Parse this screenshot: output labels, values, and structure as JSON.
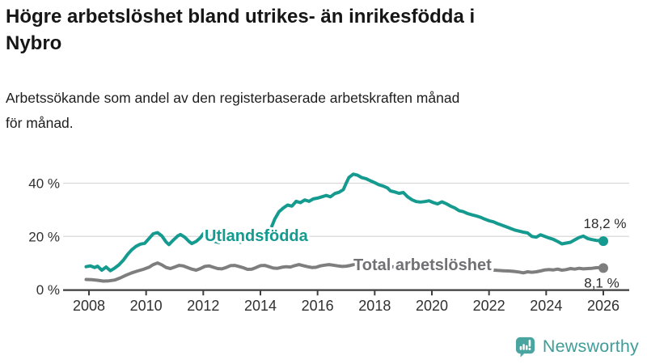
{
  "header": {
    "title": "Högre arbetslöshet bland utrikes- än inrikesfödda i Nybro",
    "title_lines": [
      "Högre arbetslöshet bland utrikes- än inrikesfödda i",
      "Nybro"
    ],
    "subtitle": "Arbetssökande som andel av den registerbaserade arbetskraften månad för månad.",
    "subtitle_lines": [
      "Arbetssökande som andel av den registerbaserade arbetskraften månad",
      "för månad."
    ]
  },
  "footer": {
    "brand": "Newsworthy",
    "logo_icon": "bar-chart-speech-bubble-icon"
  },
  "colors": {
    "series_teal": "#149a8e",
    "series_gray": "#7e7e7e",
    "gray_label": "#717175",
    "grid": "#d9d9d9",
    "axis": "#3d3d3d",
    "tick_text": "#303030",
    "value_text": "#2b2b2b",
    "logo_teal": "#4aa4a0",
    "wordmark_teal": "#3f9d99"
  },
  "chart_data": {
    "type": "line",
    "title": "Högre arbetslöshet bland utrikes- än inrikesfödda i Nybro",
    "subtitle": "Arbetssökande som andel av den registerbaserade arbetskraften månad för månad.",
    "unit": "%",
    "grid": "horizontal-only",
    "legend_position": "inline-labels-on-lines",
    "x_axis": {
      "ticks": [
        2008,
        2010,
        2012,
        2014,
        2016,
        2018,
        2020,
        2022,
        2024,
        2026
      ],
      "range": [
        2007.9,
        2026.9
      ]
    },
    "y_axis": {
      "ticks": [
        {
          "value": 0,
          "label": "0 %"
        },
        {
          "value": 20,
          "label": "20 %"
        },
        {
          "value": 40,
          "label": "40 %"
        }
      ],
      "range": [
        0,
        47
      ]
    },
    "series": [
      {
        "name": "Utlandsfödda",
        "color": "#149a8e",
        "end_value": 18.2,
        "end_label": "18,2 %",
        "points": [
          [
            2007.9,
            8.6
          ],
          [
            2008.05,
            8.9
          ],
          [
            2008.2,
            8.3
          ],
          [
            2008.3,
            8.8
          ],
          [
            2008.45,
            7.3
          ],
          [
            2008.6,
            8.5
          ],
          [
            2008.75,
            7.1
          ],
          [
            2008.9,
            8.1
          ],
          [
            2009.05,
            9.3
          ],
          [
            2009.2,
            11.0
          ],
          [
            2009.35,
            13.2
          ],
          [
            2009.5,
            15.0
          ],
          [
            2009.65,
            16.3
          ],
          [
            2009.8,
            17.1
          ],
          [
            2009.95,
            17.4
          ],
          [
            2010.1,
            19.2
          ],
          [
            2010.25,
            21.0
          ],
          [
            2010.4,
            21.4
          ],
          [
            2010.55,
            20.2
          ],
          [
            2010.7,
            17.9
          ],
          [
            2010.8,
            16.9
          ],
          [
            2010.95,
            18.6
          ],
          [
            2011.1,
            20.1
          ],
          [
            2011.2,
            20.7
          ],
          [
            2011.35,
            19.7
          ],
          [
            2011.5,
            18.1
          ],
          [
            2011.6,
            17.3
          ],
          [
            2011.75,
            18.1
          ],
          [
            2011.9,
            19.5
          ],
          [
            2012.0,
            21.0
          ],
          [
            2012.15,
            21.3
          ],
          [
            2012.3,
            19.4
          ],
          [
            2012.4,
            18.1
          ],
          [
            2012.55,
            17.7
          ],
          [
            2012.7,
            18.9
          ],
          [
            2012.85,
            20.1
          ],
          [
            2013.0,
            21.0
          ],
          [
            2013.15,
            19.6
          ],
          [
            2013.3,
            17.8
          ],
          [
            2013.45,
            18.4
          ],
          [
            2013.6,
            19.7
          ],
          [
            2013.75,
            20.9
          ],
          [
            2013.9,
            21.6
          ],
          [
            2014.05,
            21.1
          ],
          [
            2014.2,
            21.7
          ],
          [
            2014.35,
            22.5
          ],
          [
            2014.5,
            26.5
          ],
          [
            2014.65,
            29.3
          ],
          [
            2014.8,
            30.7
          ],
          [
            2014.95,
            31.8
          ],
          [
            2015.1,
            31.4
          ],
          [
            2015.25,
            33.2
          ],
          [
            2015.4,
            32.7
          ],
          [
            2015.55,
            33.7
          ],
          [
            2015.7,
            33.2
          ],
          [
            2015.85,
            34.1
          ],
          [
            2016.0,
            34.4
          ],
          [
            2016.15,
            34.9
          ],
          [
            2016.3,
            35.4
          ],
          [
            2016.45,
            34.9
          ],
          [
            2016.6,
            36.1
          ],
          [
            2016.75,
            36.6
          ],
          [
            2016.9,
            37.6
          ],
          [
            2017.0,
            40.0
          ],
          [
            2017.1,
            42.2
          ],
          [
            2017.25,
            43.4
          ],
          [
            2017.4,
            43.0
          ],
          [
            2017.55,
            42.1
          ],
          [
            2017.7,
            41.7
          ],
          [
            2017.85,
            40.9
          ],
          [
            2018.0,
            40.2
          ],
          [
            2018.15,
            39.4
          ],
          [
            2018.3,
            38.9
          ],
          [
            2018.45,
            38.2
          ],
          [
            2018.55,
            37.1
          ],
          [
            2018.7,
            36.7
          ],
          [
            2018.85,
            36.2
          ],
          [
            2019.0,
            36.5
          ],
          [
            2019.15,
            34.9
          ],
          [
            2019.3,
            33.8
          ],
          [
            2019.45,
            33.1
          ],
          [
            2019.6,
            32.9
          ],
          [
            2019.75,
            33.1
          ],
          [
            2019.9,
            33.4
          ],
          [
            2020.05,
            32.7
          ],
          [
            2020.2,
            32.2
          ],
          [
            2020.35,
            33.0
          ],
          [
            2020.5,
            32.3
          ],
          [
            2020.65,
            31.4
          ],
          [
            2020.8,
            30.7
          ],
          [
            2020.95,
            29.7
          ],
          [
            2021.1,
            29.3
          ],
          [
            2021.25,
            28.6
          ],
          [
            2021.4,
            28.1
          ],
          [
            2021.55,
            27.7
          ],
          [
            2021.7,
            27.2
          ],
          [
            2021.85,
            26.5
          ],
          [
            2022.0,
            25.9
          ],
          [
            2022.15,
            25.5
          ],
          [
            2022.3,
            24.8
          ],
          [
            2022.45,
            24.2
          ],
          [
            2022.6,
            23.6
          ],
          [
            2022.75,
            23.0
          ],
          [
            2022.9,
            22.4
          ],
          [
            2023.05,
            22.0
          ],
          [
            2023.2,
            21.6
          ],
          [
            2023.35,
            21.3
          ],
          [
            2023.5,
            20.0
          ],
          [
            2023.65,
            19.7
          ],
          [
            2023.8,
            20.6
          ],
          [
            2023.95,
            20.0
          ],
          [
            2024.1,
            19.4
          ],
          [
            2024.25,
            18.9
          ],
          [
            2024.4,
            18.1
          ],
          [
            2024.55,
            17.2
          ],
          [
            2024.7,
            17.5
          ],
          [
            2024.85,
            17.8
          ],
          [
            2025.0,
            18.7
          ],
          [
            2025.15,
            19.6
          ],
          [
            2025.3,
            20.1
          ],
          [
            2025.45,
            19.2
          ],
          [
            2025.6,
            18.8
          ],
          [
            2025.75,
            18.5
          ],
          [
            2025.9,
            18.4
          ],
          [
            2026.0,
            18.2
          ]
        ]
      },
      {
        "name": "Total arbetslöshet",
        "color": "#7e7e7e",
        "end_value": 8.1,
        "end_label": "8,1 %",
        "points": [
          [
            2007.9,
            3.8
          ],
          [
            2008.1,
            3.7
          ],
          [
            2008.3,
            3.5
          ],
          [
            2008.5,
            3.2
          ],
          [
            2008.7,
            3.3
          ],
          [
            2008.9,
            3.6
          ],
          [
            2009.1,
            4.4
          ],
          [
            2009.3,
            5.4
          ],
          [
            2009.5,
            6.3
          ],
          [
            2009.7,
            7.0
          ],
          [
            2009.9,
            7.6
          ],
          [
            2010.1,
            8.4
          ],
          [
            2010.25,
            9.4
          ],
          [
            2010.4,
            10.0
          ],
          [
            2010.55,
            9.3
          ],
          [
            2010.7,
            8.3
          ],
          [
            2010.85,
            7.9
          ],
          [
            2011.0,
            8.5
          ],
          [
            2011.15,
            9.1
          ],
          [
            2011.3,
            8.9
          ],
          [
            2011.45,
            8.3
          ],
          [
            2011.6,
            7.7
          ],
          [
            2011.75,
            7.3
          ],
          [
            2011.9,
            7.9
          ],
          [
            2012.05,
            8.7
          ],
          [
            2012.2,
            8.9
          ],
          [
            2012.35,
            8.4
          ],
          [
            2012.5,
            7.9
          ],
          [
            2012.65,
            7.8
          ],
          [
            2012.8,
            8.3
          ],
          [
            2012.95,
            9.0
          ],
          [
            2013.1,
            9.1
          ],
          [
            2013.25,
            8.7
          ],
          [
            2013.4,
            8.2
          ],
          [
            2013.55,
            7.6
          ],
          [
            2013.7,
            7.7
          ],
          [
            2013.85,
            8.3
          ],
          [
            2014.0,
            9.0
          ],
          [
            2014.15,
            9.1
          ],
          [
            2014.3,
            8.6
          ],
          [
            2014.45,
            8.1
          ],
          [
            2014.6,
            8.0
          ],
          [
            2014.75,
            8.4
          ],
          [
            2014.9,
            8.6
          ],
          [
            2015.05,
            8.5
          ],
          [
            2015.2,
            9.0
          ],
          [
            2015.35,
            9.4
          ],
          [
            2015.5,
            9.0
          ],
          [
            2015.65,
            8.6
          ],
          [
            2015.8,
            8.3
          ],
          [
            2015.95,
            8.4
          ],
          [
            2016.1,
            8.9
          ],
          [
            2016.25,
            9.2
          ],
          [
            2016.4,
            9.4
          ],
          [
            2016.55,
            9.2
          ],
          [
            2016.7,
            8.9
          ],
          [
            2016.85,
            8.7
          ],
          [
            2017.0,
            8.8
          ],
          [
            2017.15,
            9.1
          ],
          [
            2017.3,
            9.5
          ],
          [
            2017.45,
            9.8
          ],
          [
            2017.6,
            9.9
          ],
          [
            2017.8,
            9.5
          ],
          [
            2018.0,
            9.2
          ],
          [
            2018.2,
            9.0
          ],
          [
            2018.4,
            8.8
          ],
          [
            2018.6,
            8.6
          ],
          [
            2018.8,
            8.4
          ],
          [
            2019.0,
            8.3
          ],
          [
            2019.2,
            8.1
          ],
          [
            2019.4,
            8.0
          ],
          [
            2019.6,
            7.9
          ],
          [
            2019.8,
            7.9
          ],
          [
            2020.0,
            8.1
          ],
          [
            2020.2,
            8.7
          ],
          [
            2020.35,
            9.3
          ],
          [
            2020.5,
            9.5
          ],
          [
            2020.7,
            9.3
          ],
          [
            2020.9,
            9.0
          ],
          [
            2021.1,
            8.8
          ],
          [
            2021.3,
            8.5
          ],
          [
            2021.5,
            8.2
          ],
          [
            2021.7,
            7.9
          ],
          [
            2021.9,
            7.6
          ],
          [
            2022.1,
            7.4
          ],
          [
            2022.3,
            7.2
          ],
          [
            2022.5,
            7.1
          ],
          [
            2022.7,
            7.0
          ],
          [
            2022.9,
            6.8
          ],
          [
            2023.05,
            6.6
          ],
          [
            2023.2,
            6.3
          ],
          [
            2023.35,
            6.7
          ],
          [
            2023.5,
            6.5
          ],
          [
            2023.65,
            6.7
          ],
          [
            2023.8,
            7.0
          ],
          [
            2023.95,
            7.4
          ],
          [
            2024.1,
            7.5
          ],
          [
            2024.25,
            7.4
          ],
          [
            2024.4,
            7.7
          ],
          [
            2024.55,
            7.3
          ],
          [
            2024.7,
            7.5
          ],
          [
            2024.85,
            7.9
          ],
          [
            2025.0,
            7.7
          ],
          [
            2025.15,
            8.0
          ],
          [
            2025.3,
            7.8
          ],
          [
            2025.45,
            7.9
          ],
          [
            2025.6,
            8.0
          ],
          [
            2025.75,
            8.2
          ],
          [
            2025.9,
            8.3
          ],
          [
            2026.0,
            8.1
          ]
        ]
      }
    ]
  }
}
